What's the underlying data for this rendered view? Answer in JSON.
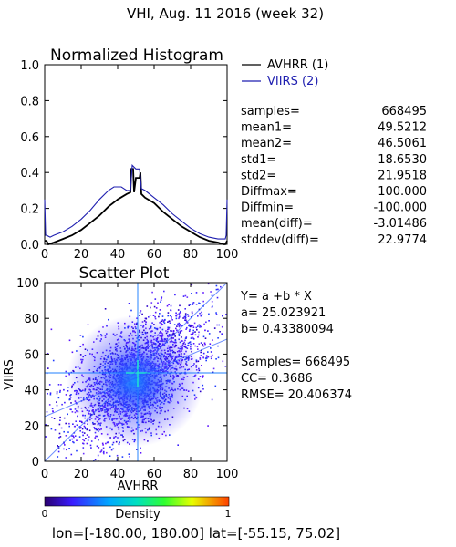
{
  "header": {
    "title": "VHI,  Aug. 11 2016 (week 32)"
  },
  "chart_data": [
    {
      "type": "line",
      "title": "Normalized Histogram",
      "xlim": [
        0,
        100
      ],
      "ylim": [
        0,
        1.0
      ],
      "x_ticks": [
        "0",
        "20",
        "40",
        "60",
        "80",
        "100"
      ],
      "y_ticks": [
        "0.0",
        "0.2",
        "0.4",
        "0.6",
        "0.8",
        "1.0"
      ],
      "legend_position": "top-right, outside plot",
      "series": [
        {
          "name": "AVHRR (1)",
          "color": "#000000",
          "x": [
            0,
            1,
            2,
            5,
            10,
            15,
            20,
            25,
            30,
            35,
            40,
            45,
            47,
            47.5,
            48.5,
            49,
            50,
            52,
            52.5,
            53,
            55,
            60,
            65,
            70,
            75,
            80,
            85,
            90,
            95,
            98,
            99,
            100
          ],
          "y": [
            0.02,
            0.02,
            0.0,
            0.01,
            0.03,
            0.05,
            0.08,
            0.12,
            0.16,
            0.21,
            0.25,
            0.28,
            0.29,
            0.42,
            0.42,
            0.29,
            0.37,
            0.37,
            0.4,
            0.28,
            0.26,
            0.23,
            0.18,
            0.14,
            0.1,
            0.07,
            0.04,
            0.02,
            0.01,
            0.0,
            0.0,
            0.02
          ]
        },
        {
          "name": "VIIRS (2)",
          "color": "#1f1fb0",
          "x": [
            0,
            0.5,
            1,
            3,
            5,
            10,
            15,
            20,
            25,
            30,
            35,
            38,
            42,
            45,
            47,
            48,
            49,
            50,
            52,
            53,
            55,
            60,
            65,
            70,
            75,
            80,
            85,
            90,
            95,
            98,
            99,
            99.5,
            100
          ],
          "y": [
            0.25,
            0.05,
            0.05,
            0.04,
            0.05,
            0.07,
            0.1,
            0.14,
            0.19,
            0.25,
            0.3,
            0.32,
            0.32,
            0.3,
            0.3,
            0.44,
            0.43,
            0.42,
            0.42,
            0.31,
            0.3,
            0.26,
            0.22,
            0.17,
            0.13,
            0.09,
            0.06,
            0.04,
            0.03,
            0.03,
            0.03,
            0.05,
            0.25
          ]
        }
      ]
    },
    {
      "type": "scatter",
      "title": "Scatter Plot",
      "xlabel": "AVHRR",
      "ylabel": "VIIRS",
      "xlim": [
        0,
        100
      ],
      "ylim": [
        0,
        100
      ],
      "x_ticks": [
        "0",
        "20",
        "40",
        "60",
        "80",
        "100"
      ],
      "y_ticks": [
        "0",
        "20",
        "40",
        "60",
        "80",
        "100"
      ],
      "colorbar": {
        "label": "Density",
        "min_label": "0",
        "max_label": "1"
      },
      "density_peak": [
        50,
        47
      ],
      "regression_line": {
        "a": 25.023921,
        "b": 0.43380094
      }
    }
  ],
  "stats": [
    {
      "label": "samples=",
      "value": "668495"
    },
    {
      "label": "mean1=",
      "value": "49.5212"
    },
    {
      "label": "mean2=",
      "value": "46.5061"
    },
    {
      "label": "std1=",
      "value": "18.6530"
    },
    {
      "label": "std2=",
      "value": "21.9518"
    },
    {
      "label": "Diffmax=",
      "value": "100.000"
    },
    {
      "label": "Diffmin=",
      "value": "-100.000"
    },
    {
      "label": "mean(diff)=",
      "value": "-3.01486"
    },
    {
      "label": "stddev(diff)=",
      "value": "22.9774"
    }
  ],
  "regression_info": {
    "equation": "Y= a +b * X",
    "a_text": "a= 25.023921",
    "b_text": "b= 0.43380094",
    "samples_text": "Samples= 668495",
    "cc_text": "CC=  0.3686",
    "rmse_text": "RMSE= 20.406374"
  },
  "footer": {
    "range": "lon=[-180.00, 180.00] lat=[-55.15, 75.02]"
  }
}
